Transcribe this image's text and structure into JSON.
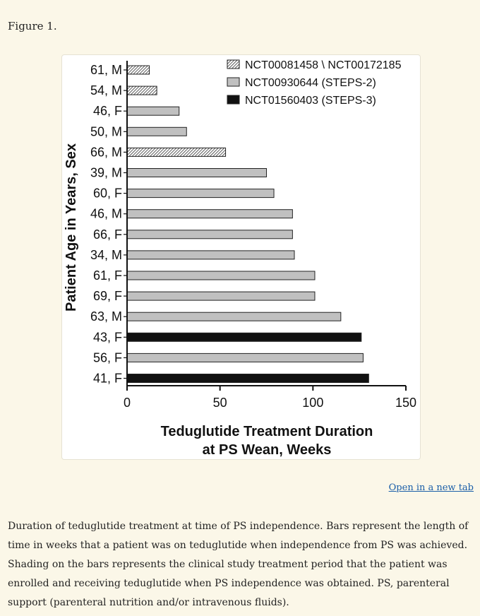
{
  "figure_label": "Figure 1.",
  "open_link": "Open in a new tab",
  "caption": "Duration of teduglutide treatment at time of PS independence. Bars represent the length of time in weeks that a patient was on teduglutide when independence from PS was achieved. Shading on the bars represents the clinical study treatment period that the patient was enrolled and receiving teduglutide when PS independence was obtained. PS, parenteral support (parenteral nutrition and/or intravenous fluids).",
  "chart_data": {
    "type": "bar",
    "orientation": "horizontal",
    "xlabel": [
      "Teduglutide Treatment Duration",
      "at PS Wean, Weeks"
    ],
    "ylabel": "Patient Age in Years, Sex",
    "xlim": [
      0,
      150
    ],
    "xticks": [
      "0",
      "50",
      "100",
      "150"
    ],
    "legend_position": "top-right",
    "legend": [
      {
        "name": "NCT00081458 \\ NCT00172185",
        "style": "hatch"
      },
      {
        "name": "NCT00930644 (STEPS-2)",
        "style": "gray"
      },
      {
        "name": "NCT01560403 (STEPS-3)",
        "style": "black"
      }
    ],
    "colors": {
      "gray": "#c0c0c0",
      "black": "#111111",
      "hatch": "#555555"
    },
    "bars": [
      {
        "label": "61, M",
        "value": 12,
        "study": "hatch"
      },
      {
        "label": "54, M",
        "value": 16,
        "study": "hatch"
      },
      {
        "label": "46, F",
        "value": 28,
        "study": "gray"
      },
      {
        "label": "50, M",
        "value": 32,
        "study": "gray"
      },
      {
        "label": "66, M",
        "value": 53,
        "study": "hatch"
      },
      {
        "label": "39, M",
        "value": 75,
        "study": "gray"
      },
      {
        "label": "60, F",
        "value": 79,
        "study": "gray"
      },
      {
        "label": "46, M",
        "value": 89,
        "study": "gray"
      },
      {
        "label": "66, F",
        "value": 89,
        "study": "gray"
      },
      {
        "label": "34, M",
        "value": 90,
        "study": "gray"
      },
      {
        "label": "61, F",
        "value": 101,
        "study": "gray"
      },
      {
        "label": "69, F",
        "value": 101,
        "study": "gray"
      },
      {
        "label": "63, M",
        "value": 115,
        "study": "gray"
      },
      {
        "label": "43, F",
        "value": 126,
        "study": "black"
      },
      {
        "label": "56, F",
        "value": 127,
        "study": "gray"
      },
      {
        "label": "41, F",
        "value": 130,
        "study": "black"
      }
    ]
  }
}
